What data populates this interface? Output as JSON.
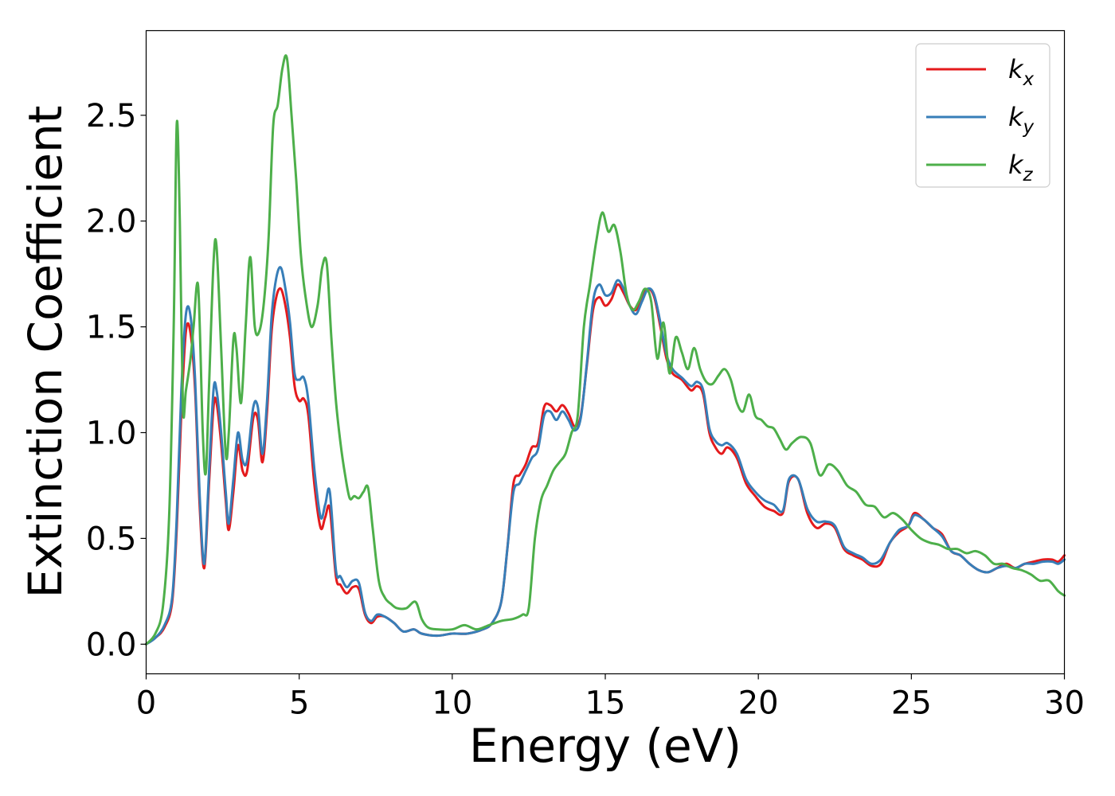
{
  "chart_data": {
    "type": "line",
    "title": "",
    "xlabel": "Energy (eV)",
    "ylabel": "Extinction Coefficient",
    "xlim": [
      0,
      30
    ],
    "ylim": [
      -0.14,
      2.9
    ],
    "xticks": [
      0,
      5,
      10,
      15,
      20,
      25,
      30
    ],
    "xtick_labels": [
      "0",
      "5",
      "10",
      "15",
      "20",
      "25",
      "30"
    ],
    "yticks": [
      0.0,
      0.5,
      1.0,
      1.5,
      2.0,
      2.5
    ],
    "ytick_labels": [
      "0.0",
      "0.5",
      "1.0",
      "1.5",
      "2.0",
      "2.5"
    ],
    "grid": false,
    "legend_position": "top-right",
    "series": [
      {
        "name": "kx",
        "legend_main": "k",
        "legend_sub": "x",
        "color": "#e41a1c",
        "x": [
          0,
          0.3,
          0.6,
          0.85,
          1.0,
          1.15,
          1.3,
          1.45,
          1.6,
          1.75,
          1.9,
          2.05,
          2.2,
          2.3,
          2.45,
          2.6,
          2.7,
          2.85,
          3.0,
          3.15,
          3.3,
          3.5,
          3.65,
          3.8,
          3.95,
          4.1,
          4.25,
          4.4,
          4.55,
          4.7,
          4.85,
          5.0,
          5.15,
          5.3,
          5.5,
          5.7,
          5.85,
          6.0,
          6.2,
          6.35,
          6.55,
          6.75,
          6.95,
          7.15,
          7.35,
          7.55,
          7.8,
          8.1,
          8.4,
          8.75,
          9.0,
          9.5,
          10.0,
          10.5,
          11.0,
          11.3,
          11.6,
          11.8,
          12.0,
          12.2,
          12.4,
          12.6,
          12.8,
          13.0,
          13.2,
          13.4,
          13.6,
          13.8,
          14.0,
          14.2,
          14.4,
          14.6,
          14.8,
          15.0,
          15.2,
          15.4,
          15.6,
          15.8,
          16.0,
          16.2,
          16.4,
          16.6,
          16.8,
          17.0,
          17.2,
          17.5,
          17.8,
          18.0,
          18.2,
          18.4,
          18.6,
          18.8,
          19.0,
          19.3,
          19.6,
          19.9,
          20.2,
          20.5,
          20.8,
          21.0,
          21.3,
          21.6,
          21.9,
          22.2,
          22.5,
          22.8,
          23.1,
          23.4,
          23.7,
          24.0,
          24.3,
          24.6,
          24.9,
          25.1,
          25.4,
          25.7,
          26.0,
          26.3,
          26.6,
          26.9,
          27.2,
          27.5,
          27.8,
          28.1,
          28.4,
          28.7,
          29.0,
          29.3,
          29.6,
          29.8,
          30.0
        ],
        "y": [
          0.0,
          0.03,
          0.08,
          0.2,
          0.55,
          1.1,
          1.48,
          1.47,
          1.2,
          0.65,
          0.36,
          0.75,
          1.12,
          1.14,
          0.95,
          0.68,
          0.54,
          0.72,
          0.94,
          0.82,
          0.82,
          1.07,
          1.06,
          0.86,
          1.1,
          1.48,
          1.64,
          1.68,
          1.6,
          1.45,
          1.22,
          1.15,
          1.16,
          1.08,
          0.75,
          0.55,
          0.6,
          0.64,
          0.32,
          0.28,
          0.24,
          0.27,
          0.26,
          0.14,
          0.1,
          0.13,
          0.13,
          0.1,
          0.06,
          0.07,
          0.05,
          0.04,
          0.05,
          0.05,
          0.07,
          0.1,
          0.2,
          0.45,
          0.76,
          0.8,
          0.85,
          0.93,
          0.95,
          1.12,
          1.13,
          1.1,
          1.13,
          1.09,
          1.03,
          1.08,
          1.32,
          1.58,
          1.64,
          1.6,
          1.63,
          1.7,
          1.66,
          1.6,
          1.58,
          1.64,
          1.68,
          1.64,
          1.5,
          1.35,
          1.28,
          1.25,
          1.2,
          1.22,
          1.18,
          1.0,
          0.93,
          0.9,
          0.93,
          0.88,
          0.76,
          0.7,
          0.65,
          0.63,
          0.62,
          0.77,
          0.78,
          0.62,
          0.55,
          0.57,
          0.55,
          0.45,
          0.42,
          0.4,
          0.37,
          0.38,
          0.48,
          0.53,
          0.56,
          0.62,
          0.59,
          0.55,
          0.52,
          0.44,
          0.42,
          0.38,
          0.35,
          0.34,
          0.36,
          0.38,
          0.36,
          0.38,
          0.39,
          0.4,
          0.4,
          0.39,
          0.42
        ]
      },
      {
        "name": "ky",
        "legend_main": "k",
        "legend_sub": "y",
        "color": "#377eb8",
        "x": [
          0,
          0.3,
          0.6,
          0.85,
          1.0,
          1.15,
          1.3,
          1.45,
          1.6,
          1.75,
          1.9,
          2.05,
          2.2,
          2.3,
          2.45,
          2.6,
          2.7,
          2.85,
          3.0,
          3.15,
          3.3,
          3.5,
          3.65,
          3.8,
          3.95,
          4.1,
          4.25,
          4.4,
          4.55,
          4.7,
          4.85,
          5.0,
          5.15,
          5.3,
          5.5,
          5.7,
          5.85,
          6.0,
          6.2,
          6.35,
          6.55,
          6.75,
          6.95,
          7.15,
          7.35,
          7.55,
          7.8,
          8.1,
          8.4,
          8.75,
          9.0,
          9.5,
          10.0,
          10.5,
          11.0,
          11.3,
          11.6,
          11.8,
          12.0,
          12.2,
          12.4,
          12.6,
          12.8,
          13.0,
          13.2,
          13.4,
          13.6,
          13.8,
          14.0,
          14.2,
          14.4,
          14.6,
          14.8,
          15.0,
          15.2,
          15.4,
          15.6,
          15.8,
          16.0,
          16.2,
          16.4,
          16.6,
          16.8,
          17.0,
          17.2,
          17.5,
          17.8,
          18.0,
          18.2,
          18.4,
          18.6,
          18.8,
          19.0,
          19.3,
          19.6,
          19.9,
          20.2,
          20.5,
          20.8,
          21.0,
          21.3,
          21.6,
          21.9,
          22.2,
          22.5,
          22.8,
          23.1,
          23.4,
          23.7,
          24.0,
          24.3,
          24.6,
          24.9,
          25.1,
          25.4,
          25.7,
          26.0,
          26.3,
          26.6,
          26.9,
          27.2,
          27.5,
          27.8,
          28.1,
          28.4,
          28.7,
          29.0,
          29.3,
          29.6,
          29.8,
          30.0
        ],
        "y": [
          0.0,
          0.03,
          0.09,
          0.22,
          0.6,
          1.2,
          1.56,
          1.55,
          1.25,
          0.7,
          0.38,
          0.8,
          1.2,
          1.2,
          1.0,
          0.72,
          0.57,
          0.78,
          1.0,
          0.87,
          0.87,
          1.12,
          1.12,
          0.9,
          1.15,
          1.55,
          1.73,
          1.78,
          1.68,
          1.52,
          1.28,
          1.25,
          1.26,
          1.15,
          0.82,
          0.6,
          0.66,
          0.72,
          0.35,
          0.32,
          0.27,
          0.3,
          0.29,
          0.15,
          0.11,
          0.14,
          0.13,
          0.1,
          0.06,
          0.07,
          0.05,
          0.04,
          0.05,
          0.05,
          0.07,
          0.1,
          0.2,
          0.45,
          0.72,
          0.76,
          0.82,
          0.88,
          0.92,
          1.08,
          1.1,
          1.06,
          1.1,
          1.06,
          1.01,
          1.07,
          1.33,
          1.62,
          1.7,
          1.65,
          1.66,
          1.72,
          1.68,
          1.6,
          1.56,
          1.62,
          1.68,
          1.65,
          1.52,
          1.37,
          1.3,
          1.26,
          1.22,
          1.24,
          1.2,
          1.02,
          0.96,
          0.94,
          0.95,
          0.9,
          0.78,
          0.72,
          0.68,
          0.66,
          0.63,
          0.78,
          0.78,
          0.64,
          0.58,
          0.58,
          0.56,
          0.46,
          0.43,
          0.41,
          0.38,
          0.4,
          0.48,
          0.54,
          0.56,
          0.61,
          0.59,
          0.55,
          0.51,
          0.44,
          0.42,
          0.38,
          0.35,
          0.34,
          0.36,
          0.37,
          0.36,
          0.38,
          0.38,
          0.39,
          0.39,
          0.38,
          0.4
        ]
      },
      {
        "name": "kz",
        "legend_main": "k",
        "legend_sub": "z",
        "color": "#4daf4a",
        "x": [
          0,
          0.3,
          0.55,
          0.75,
          0.9,
          1.0,
          1.1,
          1.2,
          1.3,
          1.45,
          1.55,
          1.7,
          1.85,
          1.95,
          2.05,
          2.2,
          2.3,
          2.45,
          2.6,
          2.7,
          2.85,
          2.95,
          3.1,
          3.25,
          3.4,
          3.55,
          3.7,
          3.85,
          4.0,
          4.15,
          4.3,
          4.45,
          4.6,
          4.75,
          4.9,
          5.05,
          5.2,
          5.4,
          5.6,
          5.75,
          5.9,
          6.05,
          6.2,
          6.35,
          6.5,
          6.65,
          6.8,
          6.95,
          7.1,
          7.25,
          7.4,
          7.6,
          7.8,
          8.0,
          8.2,
          8.5,
          8.8,
          9.0,
          9.2,
          9.5,
          10.0,
          10.4,
          10.8,
          11.2,
          11.6,
          12.0,
          12.3,
          12.5,
          12.7,
          12.9,
          13.1,
          13.3,
          13.5,
          13.7,
          13.9,
          14.1,
          14.3,
          14.5,
          14.7,
          14.9,
          15.1,
          15.3,
          15.5,
          15.7,
          15.9,
          16.1,
          16.3,
          16.5,
          16.7,
          16.9,
          17.1,
          17.3,
          17.5,
          17.7,
          17.9,
          18.1,
          18.3,
          18.5,
          18.7,
          18.9,
          19.1,
          19.3,
          19.5,
          19.7,
          19.9,
          20.1,
          20.3,
          20.5,
          20.7,
          20.9,
          21.1,
          21.4,
          21.7,
          22.0,
          22.3,
          22.6,
          22.9,
          23.2,
          23.5,
          23.8,
          24.1,
          24.4,
          24.7,
          25.0,
          25.3,
          25.6,
          25.9,
          26.2,
          26.5,
          26.8,
          27.1,
          27.4,
          27.7,
          28.0,
          28.3,
          28.6,
          28.9,
          29.2,
          29.5,
          29.8,
          30.0
        ],
        "y": [
          0.0,
          0.05,
          0.18,
          0.6,
          1.5,
          2.46,
          2.0,
          1.12,
          1.2,
          1.35,
          1.5,
          1.69,
          1.0,
          0.81,
          1.2,
          1.8,
          1.88,
          1.4,
          0.9,
          1.0,
          1.44,
          1.4,
          1.14,
          1.5,
          1.83,
          1.5,
          1.48,
          1.62,
          1.92,
          2.45,
          2.55,
          2.72,
          2.77,
          2.5,
          2.2,
          1.85,
          1.65,
          1.5,
          1.6,
          1.78,
          1.8,
          1.45,
          1.15,
          0.95,
          0.8,
          0.69,
          0.7,
          0.69,
          0.72,
          0.74,
          0.55,
          0.3,
          0.22,
          0.19,
          0.17,
          0.17,
          0.2,
          0.12,
          0.08,
          0.07,
          0.07,
          0.09,
          0.07,
          0.09,
          0.11,
          0.12,
          0.14,
          0.17,
          0.5,
          0.68,
          0.75,
          0.82,
          0.86,
          0.9,
          1.0,
          1.08,
          1.5,
          1.7,
          1.9,
          2.04,
          1.95,
          1.98,
          1.85,
          1.65,
          1.58,
          1.62,
          1.68,
          1.62,
          1.35,
          1.52,
          1.28,
          1.45,
          1.38,
          1.3,
          1.4,
          1.3,
          1.24,
          1.23,
          1.27,
          1.3,
          1.25,
          1.14,
          1.1,
          1.18,
          1.08,
          1.06,
          1.03,
          1.02,
          0.97,
          0.92,
          0.95,
          0.98,
          0.95,
          0.8,
          0.85,
          0.82,
          0.75,
          0.72,
          0.66,
          0.65,
          0.6,
          0.62,
          0.59,
          0.54,
          0.5,
          0.48,
          0.47,
          0.45,
          0.45,
          0.43,
          0.44,
          0.42,
          0.38,
          0.38,
          0.36,
          0.35,
          0.33,
          0.3,
          0.3,
          0.25,
          0.23
        ]
      }
    ]
  }
}
